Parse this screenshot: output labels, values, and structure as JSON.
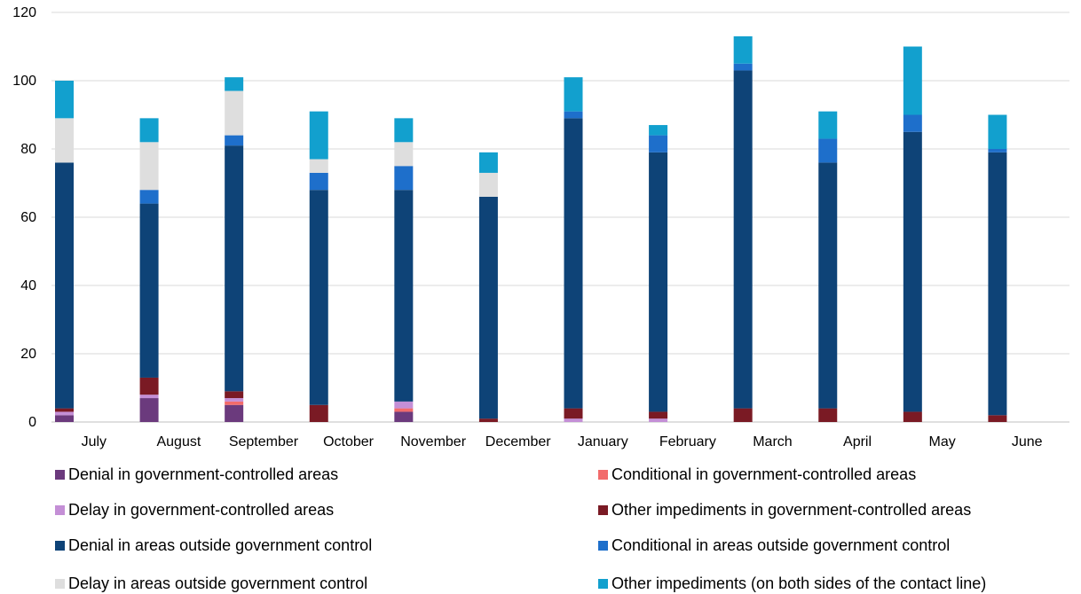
{
  "chart_data": {
    "type": "bar",
    "stacked": true,
    "categories": [
      "July",
      "August",
      "September",
      "October",
      "November",
      "December",
      "January",
      "February",
      "March",
      "April",
      "May",
      "June"
    ],
    "ylim": [
      0,
      120
    ],
    "yticks": [
      0,
      20,
      40,
      60,
      80,
      100,
      120
    ],
    "grid": true,
    "legend_position": "bottom",
    "series": [
      {
        "name": "Denial in government-controlled areas",
        "color": "#6B3A7D",
        "values": [
          2,
          7,
          5,
          0,
          3,
          0,
          0,
          0,
          0,
          0,
          0,
          0
        ]
      },
      {
        "name": "Conditional in government-controlled areas",
        "color": "#F26B6B",
        "values": [
          0,
          0,
          1,
          0,
          1,
          0,
          0,
          0,
          0,
          0,
          0,
          0
        ]
      },
      {
        "name": "Delay in government-controlled areas",
        "color": "#C48FD6",
        "values": [
          1,
          1,
          1,
          0,
          2,
          0,
          1,
          1,
          0,
          0,
          0,
          0
        ]
      },
      {
        "name": "Other impediments in government-controlled areas",
        "color": "#7A1A24",
        "values": [
          1,
          5,
          2,
          5,
          0,
          1,
          3,
          2,
          4,
          4,
          3,
          2
        ]
      },
      {
        "name": "Denial in areas outside  government control",
        "color": "#0E4377",
        "values": [
          72,
          51,
          72,
          63,
          62,
          65,
          85,
          76,
          99,
          72,
          82,
          77
        ]
      },
      {
        "name": "Conditional in areas outside government control",
        "color": "#1E6FCB",
        "values": [
          0,
          4,
          3,
          5,
          7,
          0,
          2,
          5,
          2,
          7,
          5,
          1
        ]
      },
      {
        "name": "Delay in areas outside government control",
        "color": "#DEDEDE",
        "values": [
          13,
          14,
          13,
          4,
          7,
          7,
          0,
          0,
          0,
          0,
          0,
          0
        ]
      },
      {
        "name": "Other impediments (on both sides of the contact line)",
        "color": "#12A0CE",
        "values": [
          11,
          7,
          4,
          14,
          7,
          6,
          10,
          3,
          8,
          8,
          20,
          10
        ]
      }
    ]
  }
}
